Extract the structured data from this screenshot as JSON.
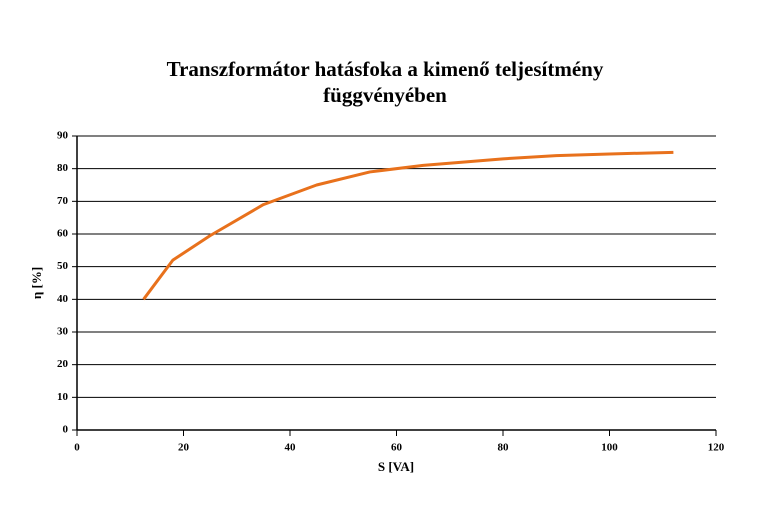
{
  "chart_data": {
    "type": "line",
    "title": "Transzformátor hatásfoka a kimenő teljesítmény függvényében",
    "x_label": "S [VA]",
    "y_label": "η [%]",
    "series": [
      {
        "name": "η",
        "color": "#e8711c",
        "x": [
          12.5,
          18,
          25,
          35,
          45,
          55,
          65,
          80,
          90,
          100,
          112
        ],
        "values": [
          40,
          52,
          59.5,
          69,
          75,
          79,
          81,
          83,
          84,
          84.5,
          85
        ]
      }
    ],
    "xlim": [
      0,
      120
    ],
    "xticks": [
      0,
      20,
      40,
      60,
      80,
      100,
      120
    ],
    "ylim": [
      0,
      90
    ],
    "yticks": [
      0,
      10,
      20,
      30,
      40,
      50,
      60,
      70,
      80,
      90
    ],
    "grid": true
  }
}
